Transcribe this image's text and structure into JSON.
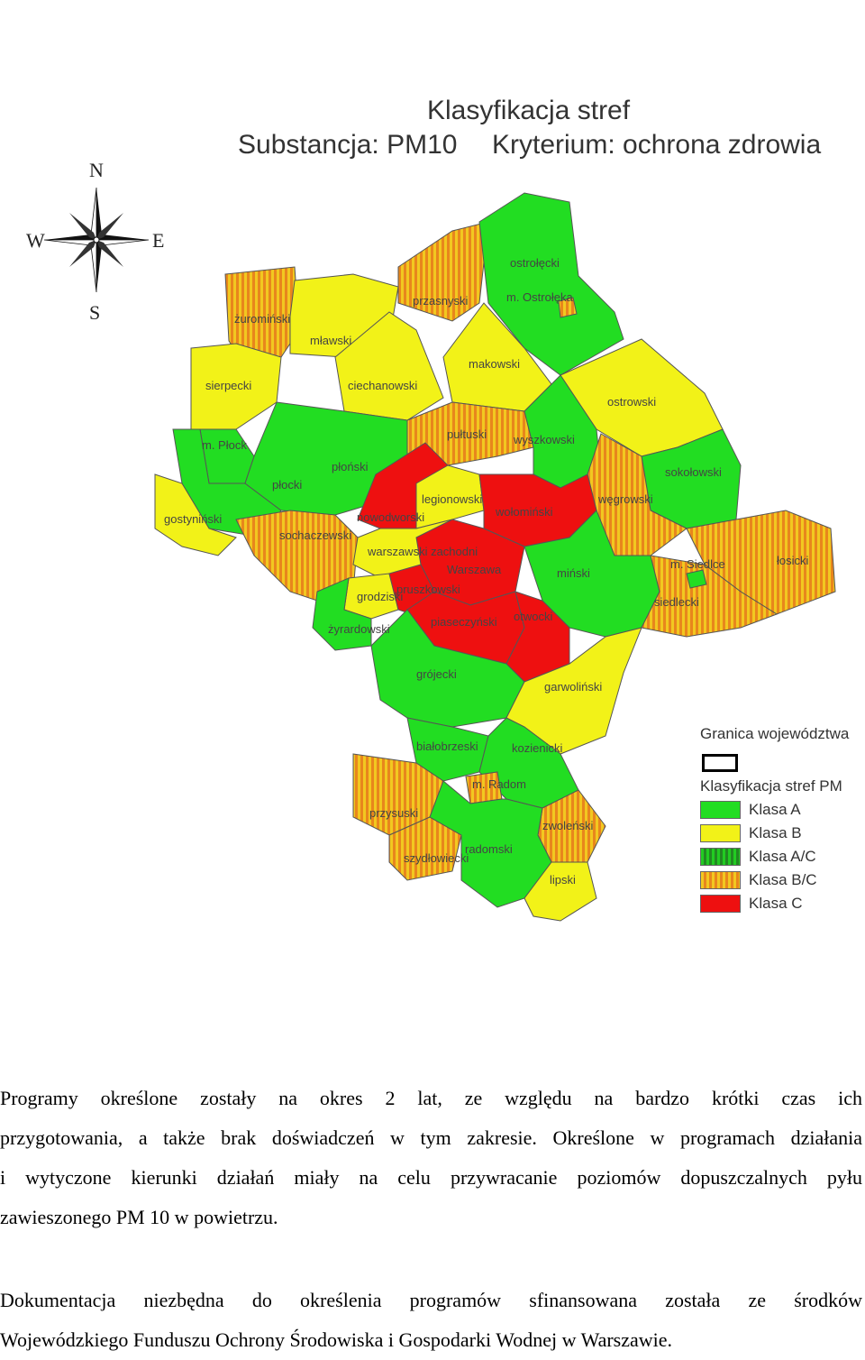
{
  "map": {
    "title": "Klasyfikacja stref",
    "substance": "Substancja: PM10",
    "criterion": "Kryterium: ochrona zdrowia",
    "compass": {
      "n": "N",
      "e": "E",
      "s": "S",
      "w": "W"
    },
    "legend": {
      "border_title": "Granica województwa",
      "classification_title": "Klasyfikacja stref PM",
      "items": [
        {
          "label": "Klasa A",
          "color": "#22dd22"
        },
        {
          "label": "Klasa B",
          "color": "#f2f218"
        },
        {
          "label": "Klasa A/C",
          "color": "#33aa22"
        },
        {
          "label": "Klasa B/C",
          "color": "#f0a020"
        },
        {
          "label": "Klasa C",
          "color": "#ee1010"
        }
      ]
    },
    "districts": [
      "żuromiński",
      "mławski",
      "przasnyski",
      "ostrołęcki",
      "m. Ostrołęka",
      "sierpecki",
      "ciechanowski",
      "makowski",
      "ostrowski",
      "m. Płock",
      "płocki",
      "płoński",
      "pułtuski",
      "wyszkowski",
      "sokołowski",
      "gostyniński",
      "sochaczewski",
      "nowodworski",
      "legionowski",
      "wołomiński",
      "węgrowski",
      "łosicki",
      "warszawski zachodni",
      "Warszawa",
      "miński",
      "m. Siedlce",
      "siedlecki",
      "grodziski",
      "pruszkowski",
      "żyrardowski",
      "piaseczyński",
      "otwocki",
      "grójecki",
      "garwoliński",
      "białobrzeski",
      "kozienicki",
      "m. Radom",
      "przysuski",
      "zwoleński",
      "szydłowiecki",
      "radomski",
      "lipski"
    ]
  },
  "text": {
    "p1_lines": [
      "Programy określone zostały na okres 2 lat, ze względu na bardzo krótki czas ich",
      "przygotowania, a także brak doświadczeń w tym zakresie. Określone w programach działania",
      "i wytyczone kierunki działań miały na celu przywracanie poziomów dopuszczalnych pyłu",
      "zawieszonego PM 10 w powietrzu."
    ],
    "p2_lines": [
      "Dokumentacja niezbędna do określenia programów sfinansowana została ze środków",
      "Wojewódzkiego Funduszu Ochrony Środowiska i Gospodarki Wodnej w Warszawie."
    ]
  }
}
